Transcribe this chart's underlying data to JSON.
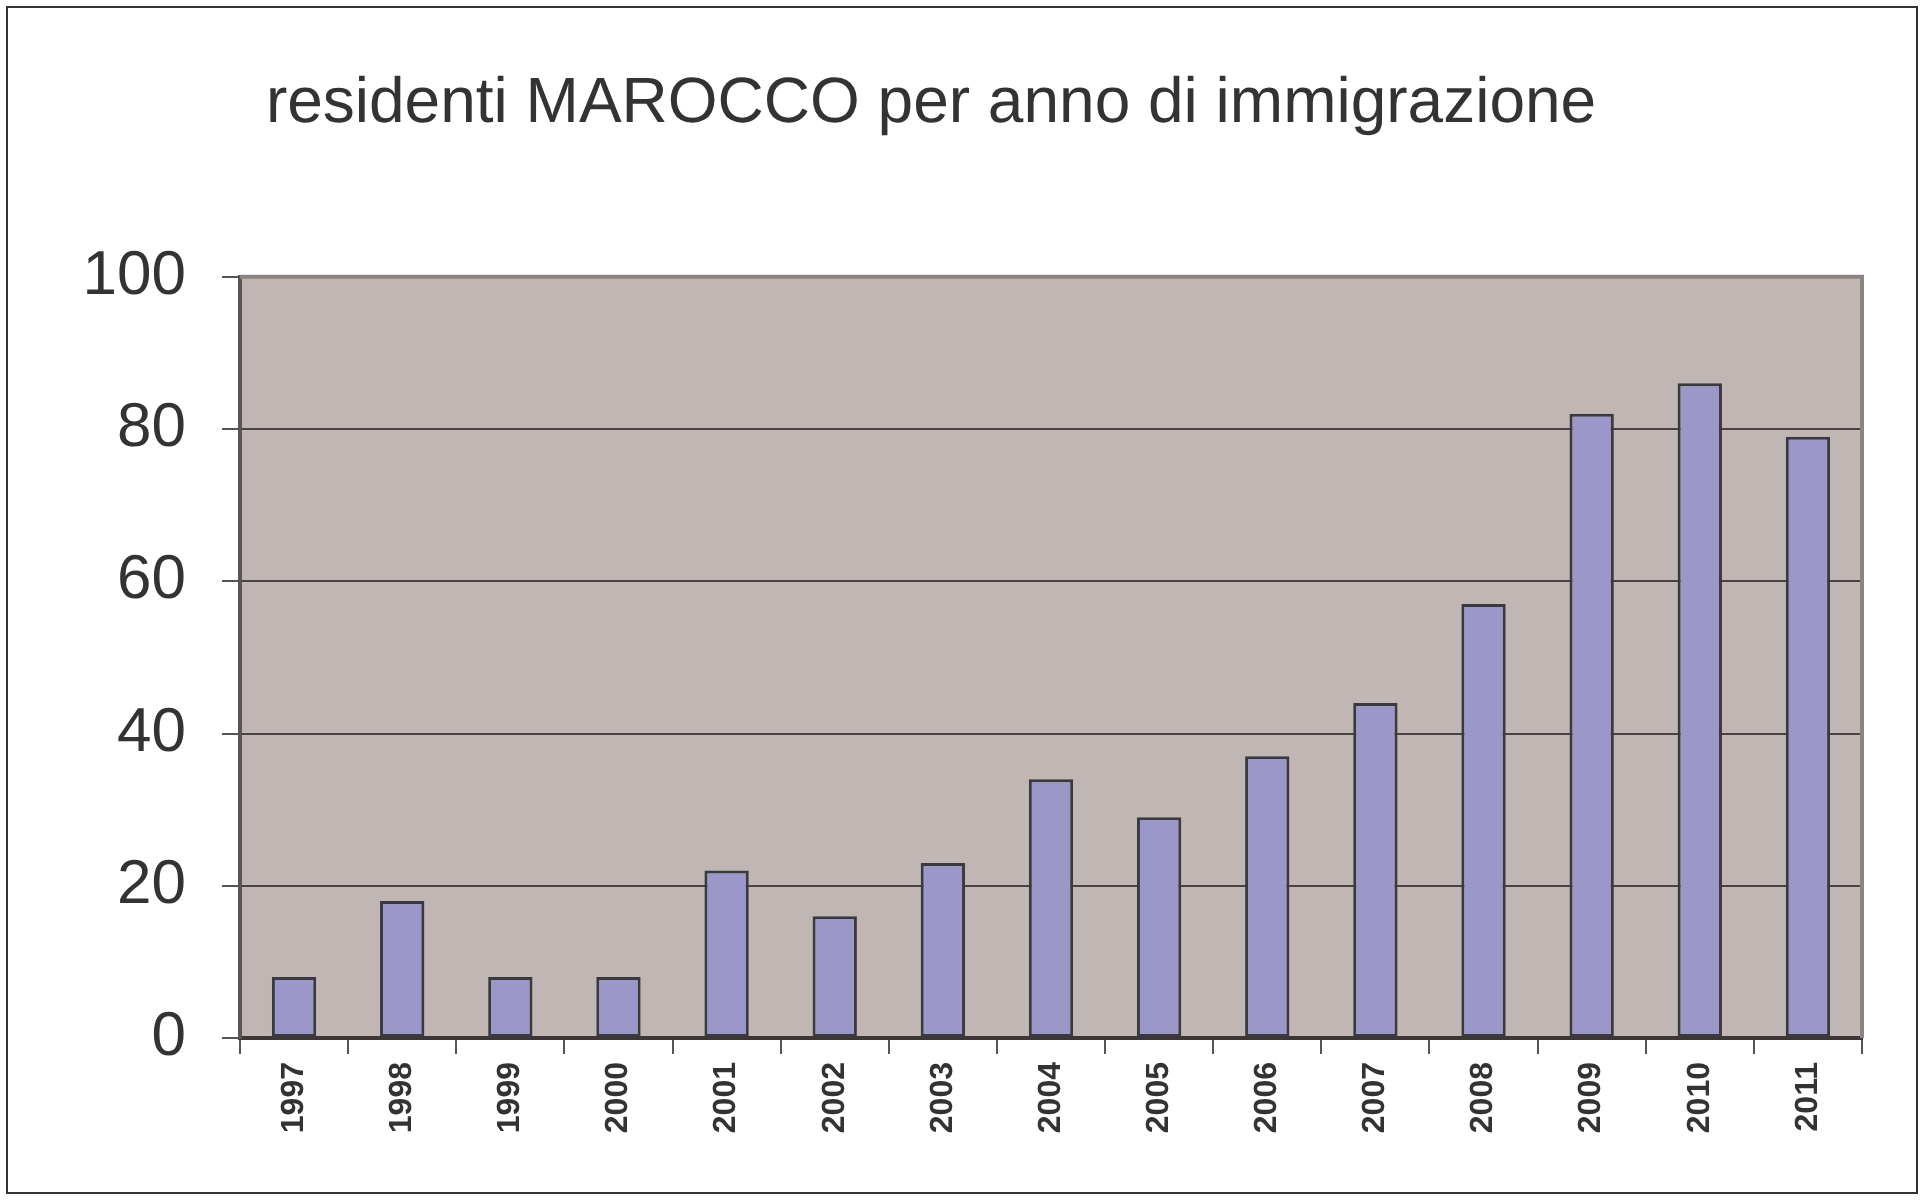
{
  "chart_data": {
    "type": "bar",
    "title": "residenti MAROCCO per anno di immigrazione",
    "categories": [
      "1997",
      "1998",
      "1999",
      "2000",
      "2001",
      "2002",
      "2003",
      "2004",
      "2005",
      "2006",
      "2007",
      "2008",
      "2009",
      "2010",
      "2011"
    ],
    "values": [
      8,
      18,
      8,
      8,
      22,
      16,
      23,
      34,
      29,
      37,
      44,
      57,
      82,
      86,
      79
    ],
    "color": "#9b97c9",
    "ylim": [
      0,
      100
    ],
    "yticks": [
      0,
      20,
      40,
      60,
      80,
      100
    ],
    "grid": "y"
  }
}
